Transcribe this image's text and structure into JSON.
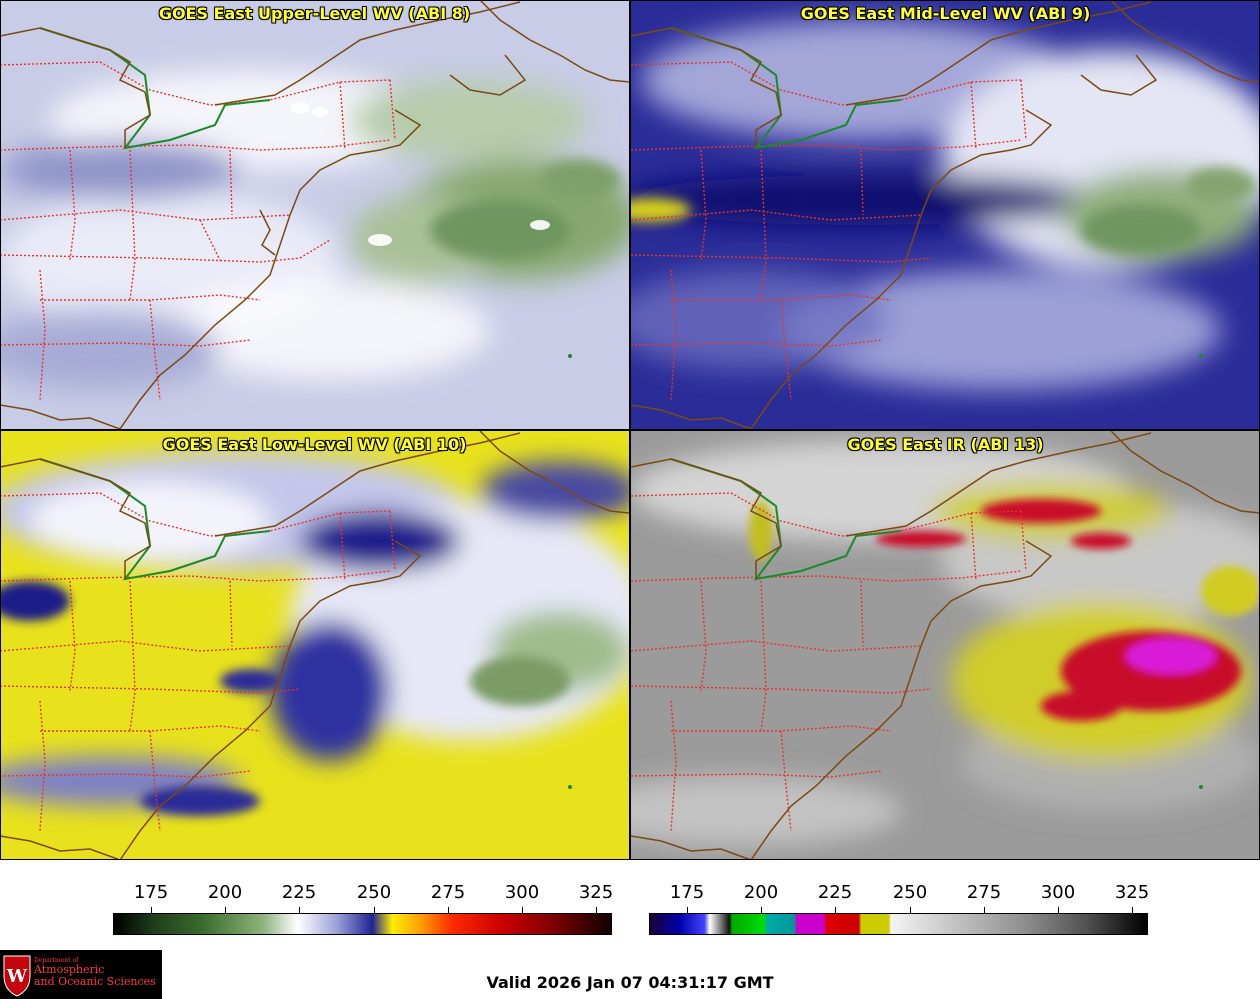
{
  "panels": [
    {
      "title": "GOES East Upper-Level WV (ABI 8)",
      "base": "#c9cde6",
      "palette": "wv_upper"
    },
    {
      "title": "GOES East Mid-Level WV (ABI 9)",
      "base": "#2e2f9c",
      "palette": "wv_mid"
    },
    {
      "title": "GOES East Low-Level WV (ABI 10)",
      "base": "#e9e21a",
      "palette": "wv_low"
    },
    {
      "title": "GOES East IR (ABI 13)",
      "base": "#9a9a9a",
      "palette": "ir"
    }
  ],
  "scales": [
    {
      "ticks": [
        "175",
        "200",
        "225",
        "250",
        "275",
        "300",
        "325"
      ],
      "palette": "wv"
    },
    {
      "ticks": [
        "175",
        "200",
        "225",
        "250",
        "275",
        "300",
        "325"
      ],
      "palette": "ir"
    }
  ],
  "colors": {
    "state_borders": "#e8332a",
    "coastlines": "#7a4a10",
    "lakes_border": "#1a8a2a",
    "title_text": "#ffff33"
  },
  "logo": {
    "department": "Department of",
    "line1": "Atmospheric",
    "line2": "and Oceanic Sciences",
    "crest_letter": "W"
  },
  "valid_time": "Valid 2026 Jan 07 04:31:17 GMT"
}
